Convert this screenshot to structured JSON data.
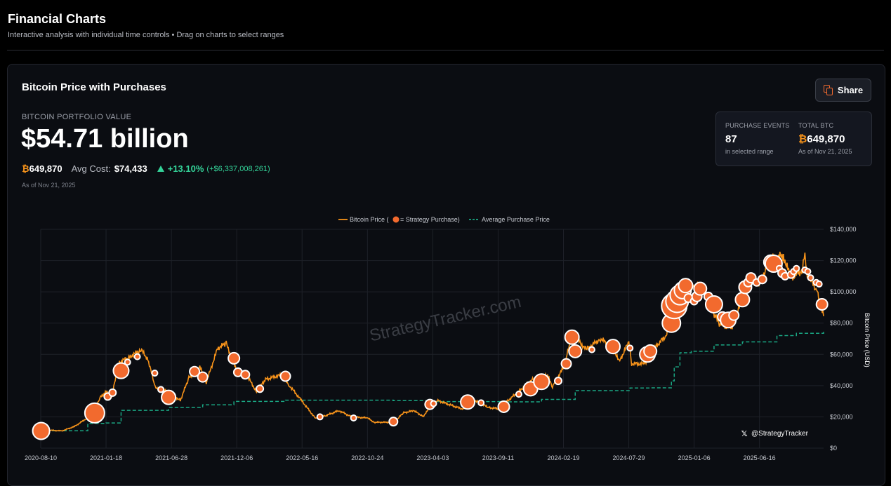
{
  "page": {
    "title": "Financial Charts",
    "subtitle": "Interactive analysis with individual time controls • Drag on charts to select ranges"
  },
  "card": {
    "title": "Bitcoin Price with Purchases",
    "share_label": "Share",
    "portfolio_label": "BITCOIN PORTFOLIO VALUE",
    "portfolio_value": "$54.71 billion",
    "btc_symbol": "₿",
    "btc_holdings": "649,870",
    "avg_cost_label": "Avg Cost:",
    "avg_cost_value": "$74,433",
    "gain_pct": "+13.10%",
    "gain_abs": "(+$6,337,008,261)",
    "as_of": "As of Nov 21, 2025"
  },
  "info_box": {
    "events_label": "PURCHASE EVENTS",
    "events_value": "87",
    "events_sub": "in selected range",
    "total_label": "TOTAL BTC",
    "total_symbol": "₿",
    "total_value": "649,870",
    "total_sub": "As of Nov 21, 2025"
  },
  "colors": {
    "price_line": "#f7931a",
    "purchase_marker": "#f26a2e",
    "avg_line": "#1aa683",
    "gain": "#34d399"
  },
  "chart_data": {
    "type": "line",
    "legend": {
      "price": "Bitcoin Price (",
      "price_suffix": " = Strategy Purchase)",
      "average": "Average Purchase Price",
      "placement": "top-center"
    },
    "watermark": "StrategyTracker.com",
    "handle": "@StrategyTracker",
    "ylabel": "Bitcoin Price (USD)",
    "ylim": [
      0,
      140000
    ],
    "y_ticks": [
      "$0",
      "$20,000",
      "$40,000",
      "$60,000",
      "$80,000",
      "$100,000",
      "$120,000",
      "$140,000"
    ],
    "y_tick_values": [
      0,
      20000,
      40000,
      60000,
      80000,
      100000,
      120000,
      140000
    ],
    "x_ticks": [
      "2020-08-10",
      "2021-01-18",
      "2021-06-28",
      "2021-12-06",
      "2022-05-16",
      "2022-10-24",
      "2023-04-03",
      "2023-09-11",
      "2024-02-19",
      "2024-07-29",
      "2025-01-06",
      "2025-06-16"
    ],
    "x_range": [
      "2020-08-10",
      "2025-11-21"
    ],
    "grid": true,
    "price_series": [
      [
        "2020-08-10",
        11800
      ],
      [
        "2020-09-01",
        11500
      ],
      [
        "2020-10-01",
        11000
      ],
      [
        "2020-11-01",
        13800
      ],
      [
        "2020-12-01",
        19000
      ],
      [
        "2020-12-20",
        23500
      ],
      [
        "2021-01-05",
        33000
      ],
      [
        "2021-01-18",
        36000
      ],
      [
        "2021-02-01",
        33500
      ],
      [
        "2021-02-20",
        55000
      ],
      [
        "2021-03-15",
        58000
      ],
      [
        "2021-04-14",
        63000
      ],
      [
        "2021-05-01",
        57000
      ],
      [
        "2021-05-19",
        39000
      ],
      [
        "2021-06-10",
        37000
      ],
      [
        "2021-06-28",
        34500
      ],
      [
        "2021-07-20",
        30500
      ],
      [
        "2021-08-10",
        45000
      ],
      [
        "2021-09-06",
        52000
      ],
      [
        "2021-09-22",
        42000
      ],
      [
        "2021-10-20",
        64000
      ],
      [
        "2021-11-10",
        67000
      ],
      [
        "2021-12-06",
        50000
      ],
      [
        "2021-12-31",
        46500
      ],
      [
        "2022-01-24",
        36000
      ],
      [
        "2022-02-15",
        44000
      ],
      [
        "2022-03-28",
        47000
      ],
      [
        "2022-04-15",
        40000
      ],
      [
        "2022-05-16",
        30000
      ],
      [
        "2022-06-18",
        19000
      ],
      [
        "2022-07-15",
        21000
      ],
      [
        "2022-08-15",
        24000
      ],
      [
        "2022-09-15",
        20000
      ],
      [
        "2022-10-24",
        19300
      ],
      [
        "2022-11-10",
        16500
      ],
      [
        "2022-12-30",
        16600
      ],
      [
        "2023-01-20",
        22500
      ],
      [
        "2023-02-15",
        24000
      ],
      [
        "2023-03-10",
        20300
      ],
      [
        "2023-04-03",
        28000
      ],
      [
        "2023-04-14",
        30500
      ],
      [
        "2023-06-15",
        25000
      ],
      [
        "2023-07-13",
        31000
      ],
      [
        "2023-08-18",
        26000
      ],
      [
        "2023-09-11",
        25200
      ],
      [
        "2023-10-24",
        34500
      ],
      [
        "2023-12-05",
        44000
      ],
      [
        "2024-01-11",
        46500
      ],
      [
        "2024-01-23",
        39500
      ],
      [
        "2024-02-19",
        51500
      ],
      [
        "2024-03-13",
        73000
      ],
      [
        "2024-04-15",
        63000
      ],
      [
        "2024-05-20",
        70000
      ],
      [
        "2024-06-20",
        64500
      ],
      [
        "2024-07-05",
        55000
      ],
      [
        "2024-07-29",
        68000
      ],
      [
        "2024-08-05",
        54000
      ],
      [
        "2024-09-06",
        54000
      ],
      [
        "2024-09-30",
        64000
      ],
      [
        "2024-10-29",
        72000
      ],
      [
        "2024-11-13",
        90000
      ],
      [
        "2024-12-05",
        100000
      ],
      [
        "2024-12-17",
        106000
      ],
      [
        "2025-01-06",
        102000
      ],
      [
        "2025-01-20",
        105000
      ],
      [
        "2025-02-28",
        84000
      ],
      [
        "2025-03-11",
        79000
      ],
      [
        "2025-04-08",
        77000
      ],
      [
        "2025-05-22",
        110000
      ],
      [
        "2025-06-16",
        106000
      ],
      [
        "2025-07-14",
        121000
      ],
      [
        "2025-08-14",
        123000
      ],
      [
        "2025-09-01",
        109000
      ],
      [
        "2025-09-30",
        114000
      ],
      [
        "2025-10-06",
        125000
      ],
      [
        "2025-10-10",
        112000
      ],
      [
        "2025-11-04",
        101000
      ],
      [
        "2025-11-21",
        84500
      ]
    ],
    "average_series": [
      [
        "2020-08-10",
        11100
      ],
      [
        "2020-09-14",
        11100
      ],
      [
        "2020-12-04",
        15800
      ],
      [
        "2021-01-18",
        16100
      ],
      [
        "2021-02-24",
        24200
      ],
      [
        "2021-06-21",
        26000
      ],
      [
        "2021-09-13",
        27700
      ],
      [
        "2021-11-29",
        29900
      ],
      [
        "2022-04-05",
        30700
      ],
      [
        "2022-12-27",
        30400
      ],
      [
        "2023-04-05",
        29800
      ],
      [
        "2023-09-25",
        29600
      ],
      [
        "2023-12-27",
        31200
      ],
      [
        "2024-03-19",
        36800
      ],
      [
        "2024-08-01",
        38500
      ],
      [
        "2024-09-20",
        38600
      ],
      [
        "2024-11-11",
        43000
      ],
      [
        "2024-11-18",
        52000
      ],
      [
        "2024-12-02",
        61000
      ],
      [
        "2024-12-30",
        62000
      ],
      [
        "2025-02-24",
        66000
      ],
      [
        "2025-05-05",
        68000
      ],
      [
        "2025-07-29",
        72000
      ],
      [
        "2025-09-15",
        73500
      ],
      [
        "2025-11-21",
        74433
      ]
    ],
    "purchases": [
      [
        "2020-08-11",
        11000,
        12
      ],
      [
        "2020-12-21",
        22500,
        14
      ],
      [
        "2021-01-22",
        33000,
        5
      ],
      [
        "2021-02-03",
        35500,
        5
      ],
      [
        "2021-02-24",
        49500,
        11
      ],
      [
        "2021-03-12",
        55000,
        4
      ],
      [
        "2021-04-05",
        58500,
        4
      ],
      [
        "2021-05-18",
        48000,
        4
      ],
      [
        "2021-06-21",
        32500,
        10
      ],
      [
        "2021-06-02",
        37500,
        4
      ],
      [
        "2021-08-24",
        49000,
        7
      ],
      [
        "2021-09-13",
        45500,
        7
      ],
      [
        "2021-11-29",
        57500,
        8
      ],
      [
        "2021-12-09",
        48500,
        6
      ],
      [
        "2021-12-27",
        47000,
        6
      ],
      [
        "2022-02-01",
        38000,
        5
      ],
      [
        "2022-04-05",
        46000,
        7
      ],
      [
        "2022-06-29",
        20000,
        4
      ],
      [
        "2022-09-20",
        19300,
        4
      ],
      [
        "2022-12-27",
        17000,
        6
      ],
      [
        "2023-03-27",
        28000,
        7
      ],
      [
        "2023-04-05",
        28500,
        4
      ],
      [
        "2023-06-28",
        29500,
        10
      ],
      [
        "2023-07-31",
        29000,
        4
      ],
      [
        "2023-09-25",
        26500,
        8
      ],
      [
        "2023-11-01",
        34500,
        4
      ],
      [
        "2023-11-30",
        38000,
        10
      ],
      [
        "2023-12-27",
        42500,
        11
      ],
      [
        "2024-02-06",
        43000,
        5
      ],
      [
        "2024-02-26",
        54000,
        7
      ],
      [
        "2024-03-11",
        71000,
        10
      ],
      [
        "2024-03-19",
        62000,
        9
      ],
      [
        "2024-04-29",
        63000,
        4
      ],
      [
        "2024-06-20",
        65000,
        10
      ],
      [
        "2024-08-01",
        64000,
        4
      ],
      [
        "2024-09-13",
        60000,
        11
      ],
      [
        "2024-09-20",
        62000,
        9
      ],
      [
        "2024-11-11",
        80000,
        13
      ],
      [
        "2024-11-18",
        91000,
        18
      ],
      [
        "2024-11-25",
        94000,
        16
      ],
      [
        "2024-12-02",
        98000,
        14
      ],
      [
        "2024-12-09",
        101000,
        12
      ],
      [
        "2024-12-16",
        104000,
        10
      ],
      [
        "2024-12-23",
        96000,
        6
      ],
      [
        "2025-01-06",
        94000,
        5
      ],
      [
        "2025-01-13",
        97000,
        7
      ],
      [
        "2025-01-21",
        102000,
        9
      ],
      [
        "2025-02-10",
        97000,
        6
      ],
      [
        "2025-02-24",
        92000,
        12
      ],
      [
        "2025-03-17",
        84000,
        7
      ],
      [
        "2025-03-31",
        82000,
        11
      ],
      [
        "2025-04-14",
        85000,
        7
      ],
      [
        "2025-05-05",
        95000,
        10
      ],
      [
        "2025-05-12",
        103000,
        9
      ],
      [
        "2025-05-19",
        106000,
        6
      ],
      [
        "2025-05-26",
        109000,
        7
      ],
      [
        "2025-06-09",
        106000,
        5
      ],
      [
        "2025-06-23",
        108000,
        6
      ],
      [
        "2025-07-14",
        119000,
        10
      ],
      [
        "2025-07-21",
        118000,
        12
      ],
      [
        "2025-08-04",
        115000,
        4
      ],
      [
        "2025-08-11",
        112000,
        6
      ],
      [
        "2025-08-18",
        110000,
        5
      ],
      [
        "2025-09-02",
        111000,
        5
      ],
      [
        "2025-09-08",
        113000,
        4
      ],
      [
        "2025-09-15",
        115000,
        4
      ],
      [
        "2025-10-06",
        114000,
        4
      ],
      [
        "2025-10-13",
        113000,
        4
      ],
      [
        "2025-10-20",
        109000,
        4
      ],
      [
        "2025-11-03",
        106000,
        4
      ],
      [
        "2025-11-10",
        105000,
        4
      ],
      [
        "2025-11-17",
        92000,
        8
      ]
    ]
  }
}
